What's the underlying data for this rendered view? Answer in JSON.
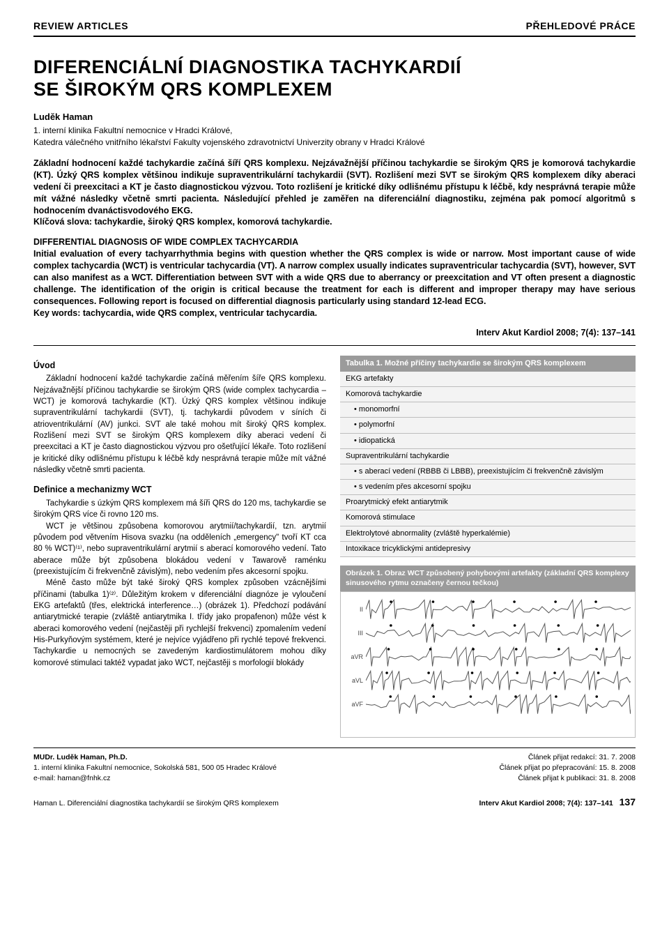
{
  "header": {
    "left": "REVIEW ARTICLES",
    "right": "PŘEHLEDOVÉ PRÁCE"
  },
  "title_line1": "DIFERENCIÁLNÍ DIAGNOSTIKA TACHYKARDIÍ",
  "title_line2": "SE ŠIROKÝM QRS KOMPLEXEM",
  "author": "Luděk Haman",
  "affiliation": "1. interní klinika Fakultní nemocnice v Hradci Králové,\nKatedra válečného vnitřního lékařství Fakulty vojenského zdravotnictví Univerzity obrany v Hradci Králové",
  "abstract_cz": "Základní hodnocení každé tachykardie začíná šíří QRS komplexu. Nejzávažnější příčinou tachykardie se širokým QRS je komorová tachykardie (KT). Úzký QRS komplex většinou indikuje supraventrikulární tachykardii (SVT). Rozlišení mezi SVT se širokým QRS komplexem díky aberaci vedení či preexcitaci a KT je často diagnostickou výzvou. Toto rozlišení je kritické díky odlišnému přístupu k léčbě, kdy nesprávná terapie může mít vážné následky včetně smrti pacienta. Následující přehled je zaměřen na diferenciální diagnostiku, zejména pak pomocí algoritmů s hodnocením dvanáctisvodového EKG.\nKlíčová slova: tachykardie, široký QRS komplex, komorová tachykardie.",
  "abstract_en_title": "DIFFERENTIAL DIAGNOSIS OF WIDE COMPLEX TACHYCARDIA",
  "abstract_en": "Initial evaluation of every tachyarrhythmia begins with question whether the QRS complex is wide or narrow. Most important cause of wide complex tachycardia (WCT) is ventricular tachycardia (VT). A narrow complex usually indicates supraventricular tachycardia (SVT), however, SVT can also manifest as a WCT. Differentiation between SVT with a wide QRS due to aberrancy or preexcitation and VT often present a diagnostic challenge. The identification of the origin is critical because the treatment for each is different and improper therapy may have serious consequences. Following report is focused on differential diagnosis particularly using standard 12-lead ECG.\nKey words: tachycardia, wide QRS complex, ventricular tachycardia.",
  "citation": "Interv Akut Kardiol 2008; 7(4): 137–141",
  "body": {
    "h1": "Úvod",
    "p1": "Základní hodnocení každé tachykardie začíná měřením šíře QRS komplexu. Nejzávažnější příčinou tachykardie se širokým QRS (wide complex tachycardia – WCT) je komorová tachykardie (KT). Úzký QRS komplex většinou indikuje supraventrikulární tachykardii (SVT), tj. tachykardii původem v síních či atrioventrikulární (AV) junkci. SVT ale také mohou mít široký QRS komplex. Rozlišení mezi SVT se širokým QRS komplexem díky aberaci vedení či preexcitaci a KT je často diagnostickou výzvou pro ošetřující lékaře. Toto rozlišení je kritické díky odlišnému přístupu k léčbě kdy nesprávná terapie může mít vážné následky včetně smrti pacienta.",
    "h2": "Definice a mechanizmy WCT",
    "p2": "Tachykardie s úzkým QRS komplexem má šíři QRS do 120 ms, tachykardie se širokým QRS více či rovno 120 ms.",
    "p3": "WCT je většinou způsobena komorovou arytmií/tachykardií, tzn. arytmií původem pod větvením Hisova svazku (na odděleních „emergency\" tvoří KT cca 80 % WCT)⁽¹⁾, nebo supraventrikulární arytmií s aberací komorového vedení. Tato aberace může být způsobena blokádou vedení v Tawarově raménku (preexistujícím či frekvenčně závislým), nebo vedením přes akcesorní spojku.",
    "p4": "Méně často může být také široký QRS komplex způsoben vzácnějšími příčinami (tabulka 1)⁽²⁾. Důležitým krokem v diferenciální diagnóze je vyloučení EKG artefaktů (třes, elektrická interference…) (obrázek 1). Předchozí podávání antiarytmické terapie (zvláště antiarytmika I. třídy jako propafenon) může vést k aberaci komorového vedení (nejčastěji při rychlejší frekvenci) zpomalením vedení His-Purkyňovým systémem, které je nejvíce vyjádřeno při rychlé tepové frekvenci. Tachykardie u nemocných se zavedeným kardiostimulátorem mohou díky komorové stimulaci taktéž vypadat jako WCT, nejčastěji s morfologií blokády"
  },
  "table1": {
    "caption": "Tabulka 1. Možné příčiny tachykardie se širokým QRS komplexem",
    "rows": [
      {
        "text": "EKG artefakty",
        "indent": false
      },
      {
        "text": "Komorová tachykardie",
        "indent": false
      },
      {
        "text": "monomorfní",
        "indent": true
      },
      {
        "text": "polymorfní",
        "indent": true
      },
      {
        "text": "idiopatická",
        "indent": true
      },
      {
        "text": "Supraventrikulární tachykardie",
        "indent": false
      },
      {
        "text": "s aberací vedení (RBBB či LBBB), preexistujícím či frekvenčně závislým",
        "indent": true
      },
      {
        "text": "s vedením přes akcesorní spojku",
        "indent": true
      },
      {
        "text": "Proarytmický efekt antiarytmik",
        "indent": false
      },
      {
        "text": "Komorová stimulace",
        "indent": false
      },
      {
        "text": "Elektrolytové abnormality (zvláště hyperkalémie)",
        "indent": false
      },
      {
        "text": "Intoxikace tricyklickými antidepresivy",
        "indent": false
      }
    ]
  },
  "figure1": {
    "caption": "Obrázek 1. Obraz WCT způsobený pohybovými artefakty (základní QRS komplexy sinusového rytmu označeny černou tečkou)",
    "leads": [
      "II",
      "III",
      "aVR",
      "aVL",
      "aVF"
    ],
    "trace_color": "#555555",
    "dot_color": "#000000"
  },
  "footer": {
    "author_line": "MUDr. Luděk Haman, Ph.D.",
    "address": "1. interní klinika Fakultní nemocnice, Sokolská 581, 500 05 Hradec Králové",
    "email": "e-mail: haman@fnhk.cz",
    "received": "Článek přijat redakcí: 31. 7. 2008",
    "revised": "Článek přijat po přepracování: 15. 8. 2008",
    "accepted": "Článek přijat k publikaci: 31. 8. 2008"
  },
  "bottom": {
    "left": "Haman L. Diferenciální diagnostika tachykardií se širokým QRS komplexem",
    "journal": "Interv Akut Kardiol 2008; 7(4): 137–141",
    "page": "137"
  }
}
